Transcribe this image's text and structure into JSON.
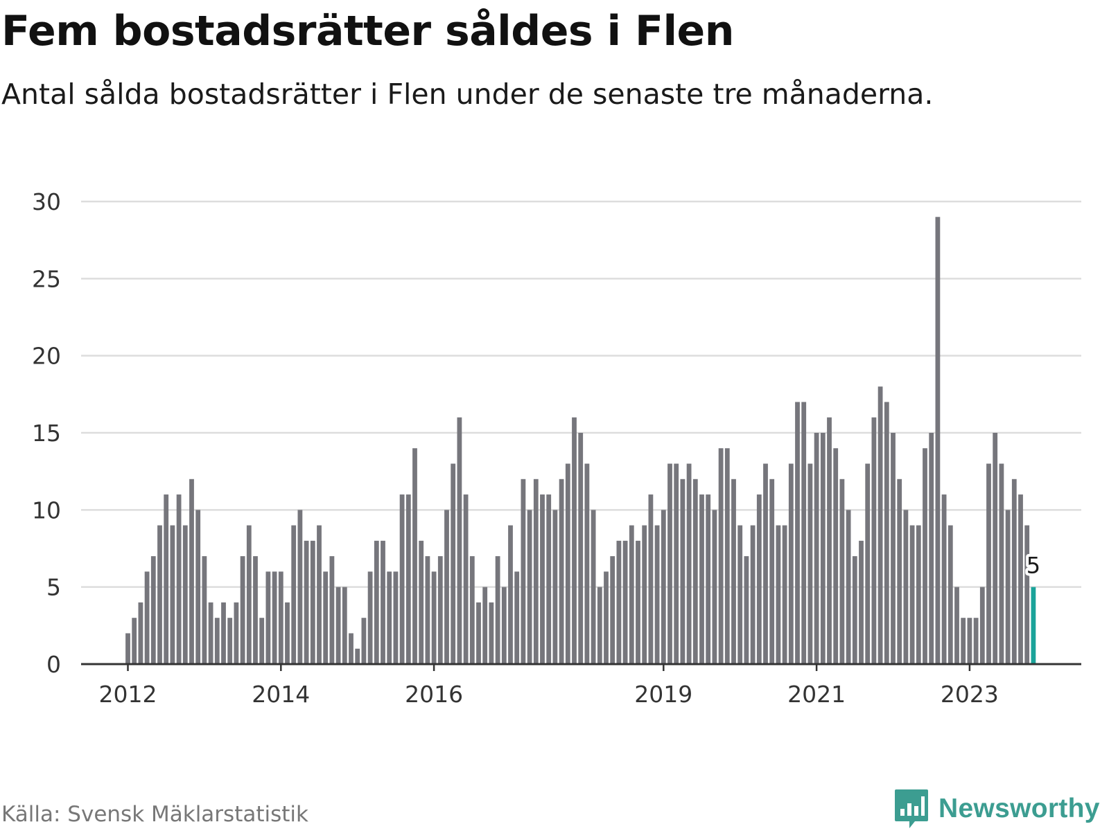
{
  "header": {
    "title": "Fem bostadsrätter såldes i Flen",
    "subtitle": "Antal sålda bostadsrätter i Flen under de senaste tre månaderna."
  },
  "footer": {
    "source": "Källa: Svensk Mäklarstatistik",
    "brand_name": "Newsworthy",
    "brand_icon": "bar-chart-speech-bubble-icon"
  },
  "colors": {
    "bar": "#76767c",
    "highlight": "#1aa39a",
    "grid": "#dddddd",
    "axis": "#333333",
    "brand": "#3c9d91"
  },
  "chart_data": {
    "type": "bar",
    "title": "Fem bostadsrätter såldes i Flen",
    "subtitle": "Antal sålda bostadsrätter i Flen under de senaste tre månaderna.",
    "xlabel": "",
    "ylabel": "",
    "ylim": [
      0,
      30
    ],
    "yticks": [
      0,
      5,
      10,
      15,
      20,
      25,
      30
    ],
    "xtick_labels": [
      {
        "label": "2012",
        "month_index": 0
      },
      {
        "label": "2014",
        "month_index": 24
      },
      {
        "label": "2016",
        "month_index": 48
      },
      {
        "label": "2019",
        "month_index": 84
      },
      {
        "label": "2021",
        "month_index": 108
      },
      {
        "label": "2023",
        "month_index": 132
      }
    ],
    "start": "2012-01",
    "frequency": "monthly",
    "grid": true,
    "legend": "none",
    "values": [
      2,
      3,
      4,
      6,
      7,
      9,
      11,
      9,
      11,
      9,
      12,
      10,
      7,
      4,
      3,
      4,
      3,
      4,
      7,
      9,
      7,
      3,
      6,
      6,
      6,
      4,
      9,
      10,
      8,
      8,
      9,
      6,
      7,
      5,
      5,
      2,
      1,
      3,
      6,
      8,
      8,
      6,
      6,
      11,
      11,
      14,
      8,
      7,
      6,
      7,
      10,
      13,
      16,
      11,
      7,
      4,
      5,
      4,
      7,
      5,
      9,
      6,
      12,
      10,
      12,
      11,
      11,
      10,
      12,
      13,
      16,
      15,
      13,
      10,
      5,
      6,
      7,
      8,
      8,
      9,
      8,
      9,
      11,
      9,
      10,
      13,
      13,
      12,
      13,
      12,
      11,
      11,
      10,
      14,
      14,
      12,
      9,
      7,
      9,
      11,
      13,
      12,
      9,
      9,
      13,
      17,
      17,
      13,
      15,
      15,
      16,
      14,
      12,
      10,
      7,
      8,
      13,
      16,
      18,
      17,
      15,
      12,
      10,
      9,
      9,
      14,
      15,
      29,
      11,
      9,
      5,
      3,
      3,
      3,
      5,
      13,
      15,
      13,
      10,
      12,
      11,
      9,
      5
    ],
    "highlight_index": 142,
    "highlight_label": "5"
  }
}
